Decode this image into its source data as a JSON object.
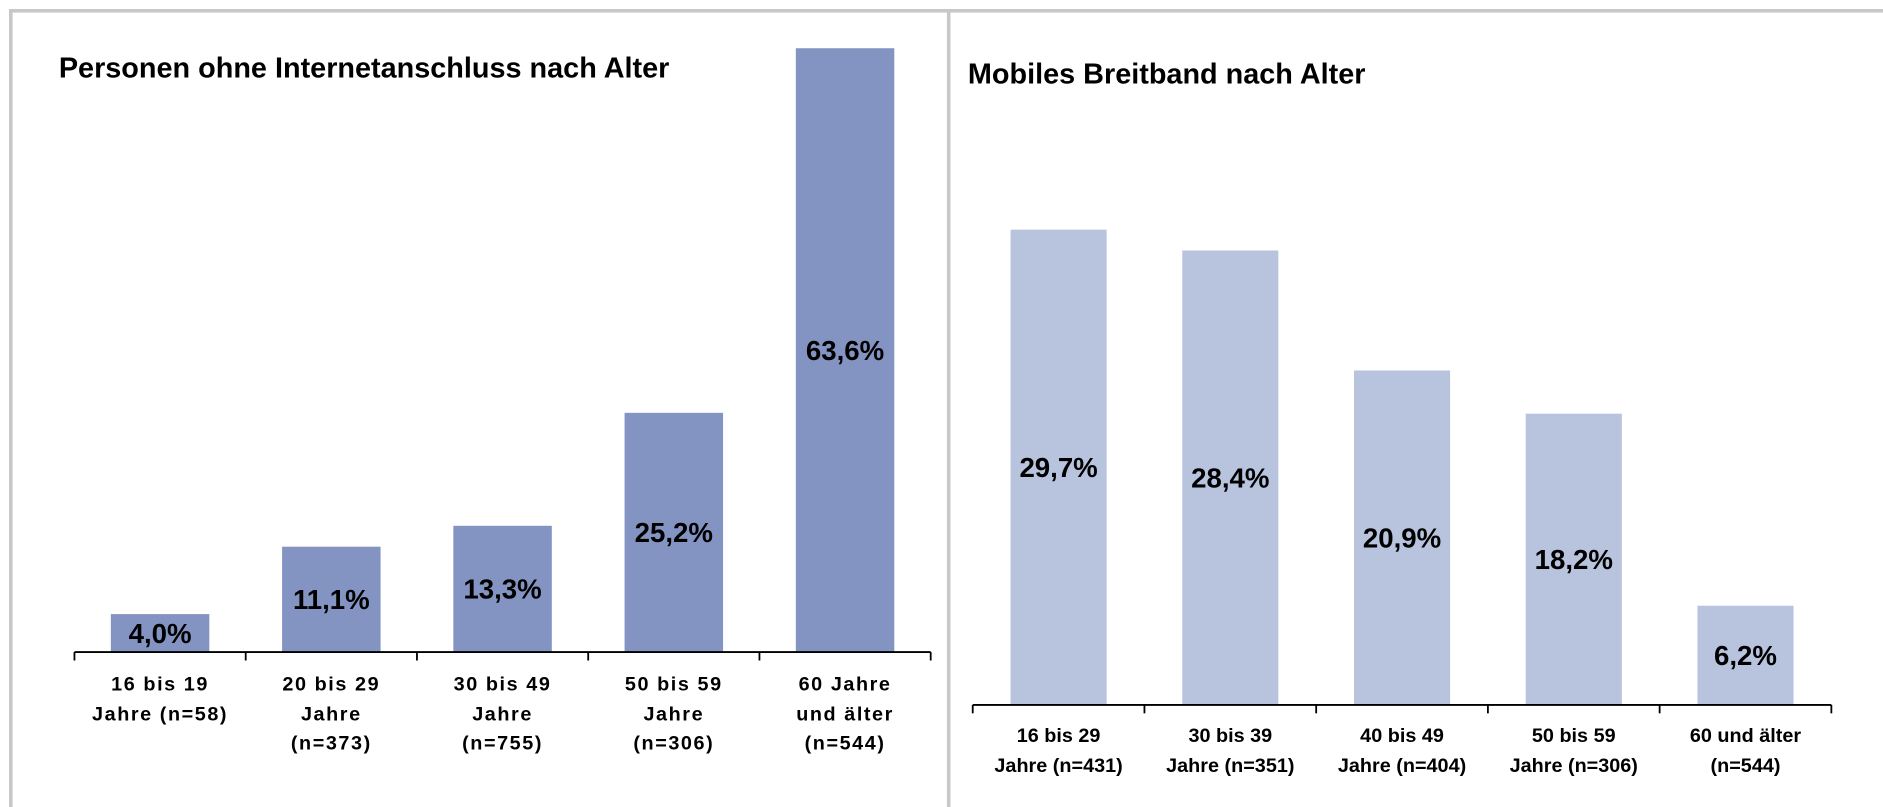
{
  "chart_data": [
    {
      "type": "bar",
      "title": "Personen ohne Internetanschluss nach Alter",
      "categories": [
        "16 bis 19\nJahre (n=58)",
        "20 bis 29\nJahre\n(n=373)",
        "30 bis 49\nJahre\n(n=755)",
        "50 bis 59\nJahre\n(n=306)",
        "60 Jahre\nund älter\n(n=544)"
      ],
      "values": [
        4.0,
        11.1,
        13.3,
        25.2,
        63.6
      ],
      "value_labels": [
        "4,0%",
        "11,1%",
        "13,3%",
        "25,2%",
        "63,6%"
      ],
      "color": "#8494c2",
      "ylim": [
        0,
        64
      ]
    },
    {
      "type": "bar",
      "title": "Mobiles Breitband nach Alter",
      "categories": [
        "16 bis 29\nJahre (n=431)",
        "30 bis 39\nJahre (n=351)",
        "40 bis 49\nJahre (n=404)",
        "50 bis 59\nJahre (n=306)",
        "60 und älter\n(n=544)"
      ],
      "values": [
        29.7,
        28.4,
        20.9,
        18.2,
        6.2
      ],
      "value_labels": [
        "29,7%",
        "28,4%",
        "20,9%",
        "18,2%",
        "6,2%"
      ],
      "color": "#b8c3de",
      "ylim": [
        0,
        40
      ]
    }
  ]
}
